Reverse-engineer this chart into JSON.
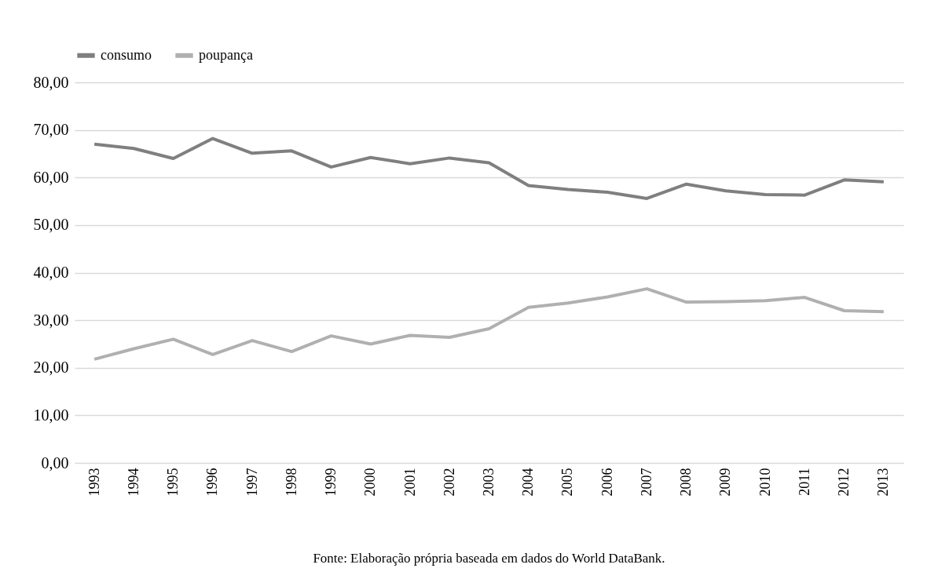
{
  "chart_data": {
    "type": "line",
    "categories": [
      "1993",
      "1994",
      "1995",
      "1996",
      "1997",
      "1998",
      "1999",
      "2000",
      "2001",
      "2002",
      "2003",
      "2004",
      "2005",
      "2006",
      "2007",
      "2008",
      "2009",
      "2010",
      "2011",
      "2012",
      "2013"
    ],
    "series": [
      {
        "name": "consumo",
        "color": "#7f7f7f",
        "values": [
          67.0,
          66.1,
          64.0,
          68.2,
          65.1,
          65.6,
          62.2,
          64.2,
          62.9,
          64.1,
          63.1,
          58.3,
          57.5,
          56.9,
          55.6,
          58.6,
          57.2,
          56.4,
          56.3,
          59.5,
          59.1
        ]
      },
      {
        "name": "poupança",
        "color": "#b0b0b0",
        "values": [
          21.8,
          24.0,
          26.0,
          22.8,
          25.7,
          23.4,
          26.7,
          25.0,
          26.8,
          26.4,
          28.2,
          32.7,
          33.6,
          34.9,
          36.6,
          33.8,
          33.9,
          34.1,
          34.8,
          32.0,
          31.8
        ]
      }
    ],
    "ylim": [
      0,
      80
    ],
    "yticks": [
      {
        "value": 0,
        "label": "0,00"
      },
      {
        "value": 10,
        "label": "10,00"
      },
      {
        "value": 20,
        "label": "20,00"
      },
      {
        "value": 30,
        "label": "30,00"
      },
      {
        "value": 40,
        "label": "40,00"
      },
      {
        "value": 50,
        "label": "50,00"
      },
      {
        "value": 60,
        "label": "60,00"
      },
      {
        "value": 70,
        "label": "70,00"
      },
      {
        "value": 80,
        "label": "80,00"
      }
    ],
    "grid": "y",
    "legend": "top",
    "line_style": "solid",
    "marker": "none",
    "annotations": [
      "Fonte: Elaboração própria baseada em dados do World DataBank."
    ]
  }
}
